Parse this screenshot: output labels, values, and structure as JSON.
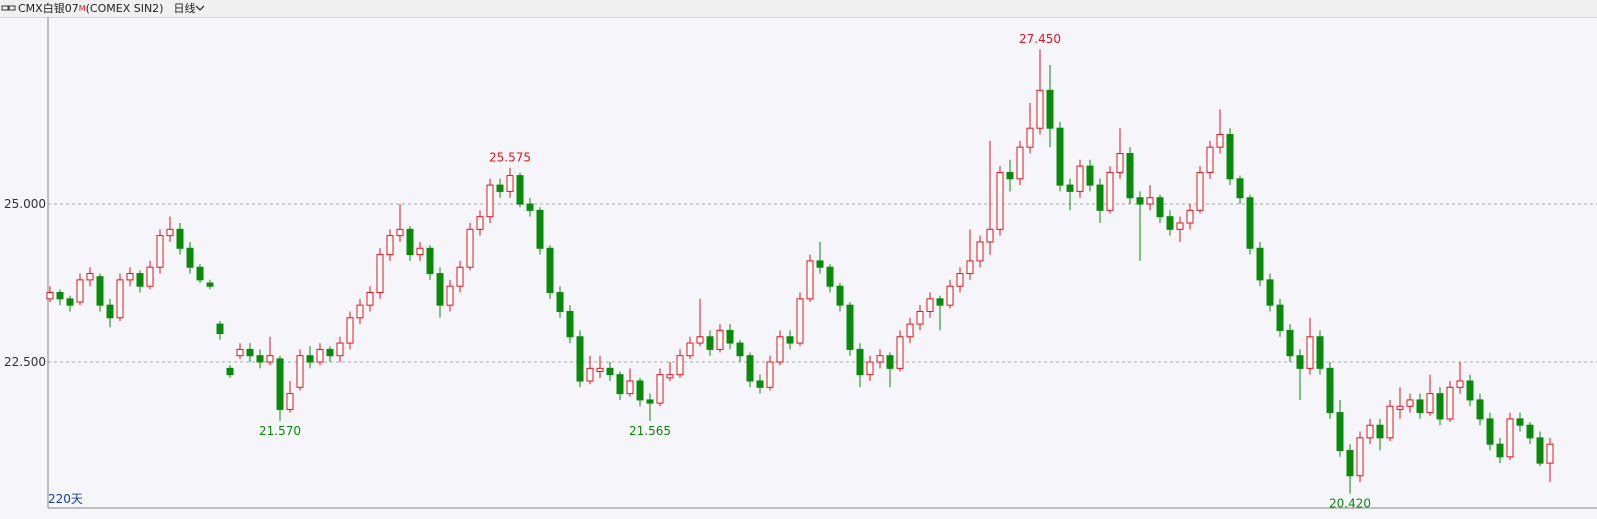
{
  "header": {
    "symbol": "CMX白银07",
    "badge": "M",
    "code": "(COMEX SIN2)",
    "period": "日线"
  },
  "chart_data": {
    "type": "candlestick",
    "ylim": [
      20.19,
      27.96
    ],
    "yticks": [
      {
        "value": 22.5,
        "label": "22.500"
      },
      {
        "value": 25,
        "label": "25.000"
      }
    ],
    "grid": true,
    "up_color": "#e4141c",
    "down_color": "#0a8a0a",
    "footer_label": "220天",
    "annotations": [
      {
        "value": 25.575,
        "label": "25.575"
      },
      {
        "value": 27.45,
        "label": "27.450"
      },
      {
        "value": 21.57,
        "label": "21.570"
      },
      {
        "value": 21.565,
        "label": "21.565"
      },
      {
        "value": 20.42,
        "label": "20.420"
      }
    ],
    "candles": [
      [
        23.5,
        23.7,
        23.45,
        23.6
      ],
      [
        23.6,
        23.65,
        23.4,
        23.5
      ],
      [
        23.5,
        23.55,
        23.3,
        23.4
      ],
      [
        23.45,
        23.9,
        23.4,
        23.8
      ],
      [
        23.8,
        24.0,
        23.7,
        23.9
      ],
      [
        23.85,
        23.9,
        23.3,
        23.4
      ],
      [
        23.4,
        23.5,
        23.05,
        23.2
      ],
      [
        23.2,
        23.9,
        23.15,
        23.8
      ],
      [
        23.8,
        24.0,
        23.7,
        23.9
      ],
      [
        23.9,
        23.95,
        23.6,
        23.7
      ],
      [
        23.7,
        24.1,
        23.65,
        24.0
      ],
      [
        24.0,
        24.6,
        23.9,
        24.5
      ],
      [
        24.5,
        24.8,
        24.4,
        24.6
      ],
      [
        24.6,
        24.7,
        24.2,
        24.3
      ],
      [
        24.3,
        24.4,
        23.9,
        24.0
      ],
      [
        24.0,
        24.05,
        23.75,
        23.8
      ],
      [
        23.75,
        23.8,
        23.65,
        23.7
      ],
      [
        23.1,
        23.15,
        22.85,
        22.95
      ],
      [
        22.4,
        22.45,
        22.25,
        22.3
      ],
      [
        22.6,
        22.8,
        22.55,
        22.7
      ],
      [
        22.7,
        22.8,
        22.5,
        22.6
      ],
      [
        22.6,
        22.7,
        22.4,
        22.5
      ],
      [
        22.5,
        22.9,
        22.45,
        22.6
      ],
      [
        22.55,
        22.6,
        21.57,
        21.75
      ],
      [
        21.75,
        22.2,
        21.7,
        22.0
      ],
      [
        22.1,
        22.7,
        22.05,
        22.6
      ],
      [
        22.6,
        22.75,
        22.4,
        22.5
      ],
      [
        22.5,
        22.8,
        22.45,
        22.7
      ],
      [
        22.7,
        22.75,
        22.5,
        22.6
      ],
      [
        22.6,
        22.9,
        22.5,
        22.8
      ],
      [
        22.8,
        23.3,
        22.7,
        23.2
      ],
      [
        23.2,
        23.5,
        23.1,
        23.4
      ],
      [
        23.4,
        23.7,
        23.3,
        23.6
      ],
      [
        23.6,
        24.3,
        23.5,
        24.2
      ],
      [
        24.2,
        24.6,
        24.1,
        24.5
      ],
      [
        24.5,
        25.0,
        24.4,
        24.6
      ],
      [
        24.6,
        24.65,
        24.1,
        24.2
      ],
      [
        24.2,
        24.4,
        24.1,
        24.3
      ],
      [
        24.3,
        24.35,
        23.8,
        23.9
      ],
      [
        23.9,
        24.0,
        23.2,
        23.4
      ],
      [
        23.4,
        23.8,
        23.3,
        23.7
      ],
      [
        23.7,
        24.1,
        23.6,
        24.0
      ],
      [
        24.0,
        24.7,
        23.95,
        24.6
      ],
      [
        24.6,
        24.9,
        24.5,
        24.8
      ],
      [
        24.8,
        25.4,
        24.7,
        25.3
      ],
      [
        25.3,
        25.4,
        25.1,
        25.2
      ],
      [
        25.2,
        25.575,
        25.1,
        25.45
      ],
      [
        25.45,
        25.5,
        24.95,
        25.0
      ],
      [
        25.0,
        25.1,
        24.8,
        24.9
      ],
      [
        24.9,
        24.95,
        24.2,
        24.3
      ],
      [
        24.3,
        24.35,
        23.5,
        23.6
      ],
      [
        23.6,
        23.7,
        23.2,
        23.3
      ],
      [
        23.3,
        23.4,
        22.8,
        22.9
      ],
      [
        22.9,
        23.0,
        22.1,
        22.2
      ],
      [
        22.2,
        22.6,
        22.15,
        22.4
      ],
      [
        22.35,
        22.6,
        22.25,
        22.4
      ],
      [
        22.4,
        22.5,
        22.2,
        22.3
      ],
      [
        22.3,
        22.35,
        21.9,
        22.0
      ],
      [
        22.0,
        22.4,
        21.95,
        22.2
      ],
      [
        22.2,
        22.25,
        21.8,
        21.9
      ],
      [
        21.9,
        22.0,
        21.565,
        21.85
      ],
      [
        21.85,
        22.4,
        21.8,
        22.3
      ],
      [
        22.25,
        22.5,
        22.2,
        22.3
      ],
      [
        22.3,
        22.7,
        22.25,
        22.6
      ],
      [
        22.6,
        22.9,
        22.55,
        22.8
      ],
      [
        22.8,
        23.5,
        22.75,
        22.9
      ],
      [
        22.9,
        23.0,
        22.6,
        22.7
      ],
      [
        22.7,
        23.1,
        22.65,
        23.0
      ],
      [
        23.0,
        23.1,
        22.7,
        22.8
      ],
      [
        22.8,
        22.85,
        22.5,
        22.6
      ],
      [
        22.6,
        22.65,
        22.1,
        22.2
      ],
      [
        22.2,
        22.3,
        22.0,
        22.1
      ],
      [
        22.1,
        22.6,
        22.05,
        22.5
      ],
      [
        22.5,
        23.0,
        22.45,
        22.9
      ],
      [
        22.9,
        23.0,
        22.7,
        22.8
      ],
      [
        22.8,
        23.6,
        22.75,
        23.5
      ],
      [
        23.5,
        24.2,
        23.45,
        24.1
      ],
      [
        24.1,
        24.4,
        23.9,
        24.0
      ],
      [
        24.0,
        24.05,
        23.6,
        23.7
      ],
      [
        23.7,
        23.75,
        23.3,
        23.4
      ],
      [
        23.4,
        23.45,
        22.6,
        22.7
      ],
      [
        22.7,
        22.8,
        22.1,
        22.3
      ],
      [
        22.3,
        22.6,
        22.2,
        22.5
      ],
      [
        22.5,
        22.7,
        22.4,
        22.6
      ],
      [
        22.6,
        22.65,
        22.1,
        22.4
      ],
      [
        22.4,
        23.0,
        22.35,
        22.9
      ],
      [
        22.9,
        23.2,
        22.8,
        23.1
      ],
      [
        23.1,
        23.4,
        23.0,
        23.3
      ],
      [
        23.3,
        23.6,
        23.2,
        23.5
      ],
      [
        23.5,
        23.55,
        23.0,
        23.4
      ],
      [
        23.4,
        23.8,
        23.35,
        23.7
      ],
      [
        23.7,
        24.0,
        23.6,
        23.9
      ],
      [
        23.9,
        24.6,
        23.8,
        24.1
      ],
      [
        24.1,
        24.5,
        24.0,
        24.4
      ],
      [
        24.4,
        26.0,
        24.2,
        24.6
      ],
      [
        24.6,
        25.6,
        24.5,
        25.5
      ],
      [
        25.5,
        25.7,
        25.2,
        25.4
      ],
      [
        25.4,
        26.0,
        25.3,
        25.9
      ],
      [
        25.9,
        26.6,
        25.8,
        26.2
      ],
      [
        26.2,
        27.45,
        26.1,
        26.8
      ],
      [
        26.8,
        27.2,
        25.9,
        26.2
      ],
      [
        26.2,
        26.3,
        25.2,
        25.3
      ],
      [
        25.3,
        25.4,
        24.9,
        25.2
      ],
      [
        25.2,
        25.7,
        25.1,
        25.6
      ],
      [
        25.6,
        25.7,
        25.2,
        25.3
      ],
      [
        25.3,
        25.4,
        24.7,
        24.9
      ],
      [
        24.9,
        25.6,
        24.85,
        25.5
      ],
      [
        25.5,
        26.2,
        25.4,
        25.8
      ],
      [
        25.8,
        25.9,
        25.0,
        25.1
      ],
      [
        25.1,
        25.2,
        24.1,
        25.0
      ],
      [
        25.0,
        25.3,
        24.9,
        25.1
      ],
      [
        25.1,
        25.15,
        24.7,
        24.8
      ],
      [
        24.8,
        24.9,
        24.5,
        24.6
      ],
      [
        24.6,
        24.8,
        24.4,
        24.7
      ],
      [
        24.7,
        25.0,
        24.6,
        24.9
      ],
      [
        24.9,
        25.6,
        24.85,
        25.5
      ],
      [
        25.5,
        26.0,
        25.4,
        25.9
      ],
      [
        25.9,
        26.5,
        25.8,
        26.1
      ],
      [
        26.1,
        26.2,
        25.3,
        25.4
      ],
      [
        25.4,
        25.45,
        25.0,
        25.1
      ],
      [
        25.1,
        25.15,
        24.2,
        24.3
      ],
      [
        24.3,
        24.4,
        23.7,
        23.8
      ],
      [
        23.8,
        23.9,
        23.3,
        23.4
      ],
      [
        23.4,
        23.5,
        22.9,
        23.0
      ],
      [
        23.0,
        23.1,
        22.5,
        22.6
      ],
      [
        22.6,
        22.7,
        21.9,
        22.4
      ],
      [
        22.4,
        23.2,
        22.3,
        22.9
      ],
      [
        22.9,
        23.0,
        22.3,
        22.4
      ],
      [
        22.4,
        22.5,
        21.6,
        21.7
      ],
      [
        21.7,
        21.9,
        21.0,
        21.1
      ],
      [
        21.1,
        21.2,
        20.42,
        20.7
      ],
      [
        20.7,
        21.4,
        20.6,
        21.3
      ],
      [
        21.3,
        21.6,
        21.2,
        21.5
      ],
      [
        21.5,
        21.6,
        21.1,
        21.3
      ],
      [
        21.3,
        21.9,
        21.25,
        21.8
      ],
      [
        21.75,
        22.1,
        21.6,
        21.8
      ],
      [
        21.8,
        22.0,
        21.7,
        21.9
      ],
      [
        21.9,
        22.0,
        21.6,
        21.7
      ],
      [
        21.7,
        22.3,
        21.65,
        22.0
      ],
      [
        22.0,
        22.1,
        21.5,
        21.6
      ],
      [
        21.6,
        22.2,
        21.55,
        22.1
      ],
      [
        22.1,
        22.5,
        22.0,
        22.2
      ],
      [
        22.2,
        22.3,
        21.8,
        21.9
      ],
      [
        21.9,
        22.0,
        21.5,
        21.6
      ],
      [
        21.6,
        21.7,
        21.1,
        21.2
      ],
      [
        21.2,
        21.3,
        20.9,
        21.0
      ],
      [
        21.0,
        21.7,
        20.95,
        21.6
      ],
      [
        21.6,
        21.7,
        21.4,
        21.5
      ],
      [
        21.5,
        21.55,
        21.2,
        21.3
      ],
      [
        21.3,
        21.4,
        20.85,
        20.9
      ],
      [
        20.9,
        21.3,
        20.6,
        21.2
      ]
    ]
  }
}
